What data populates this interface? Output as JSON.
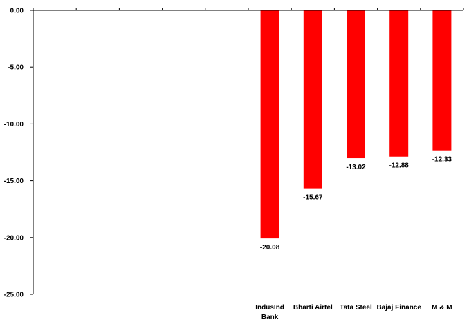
{
  "chart_data": {
    "type": "bar",
    "categories": [
      [
        "",
        ""
      ],
      [
        "",
        ""
      ],
      [
        "",
        ""
      ],
      [
        "",
        ""
      ],
      [
        "",
        ""
      ],
      [
        "IndusInd",
        "Bank"
      ],
      [
        "Bharti Airtel",
        ""
      ],
      [
        "Tata Steel",
        ""
      ],
      [
        "Bajaj Finance",
        ""
      ],
      [
        "M & M",
        ""
      ]
    ],
    "values": [
      null,
      null,
      null,
      null,
      null,
      -20.08,
      -15.67,
      -13.02,
      -12.88,
      -12.33
    ],
    "data_labels": [
      "",
      "",
      "",
      "",
      "",
      "-20.08",
      "-15.67",
      "-13.02",
      "-12.88",
      "-12.33"
    ],
    "y_ticks": [
      "0.00",
      "-5.00",
      "-10.00",
      "-15.00",
      "-20.00",
      "-25.00"
    ],
    "y_tick_values": [
      0,
      -5,
      -10,
      -15,
      -20,
      -25
    ],
    "ylim": [
      -25,
      0
    ],
    "bar_color": "#ff0000",
    "grid": false,
    "legend": "none",
    "title": "",
    "xlabel": "",
    "ylabel": ""
  }
}
